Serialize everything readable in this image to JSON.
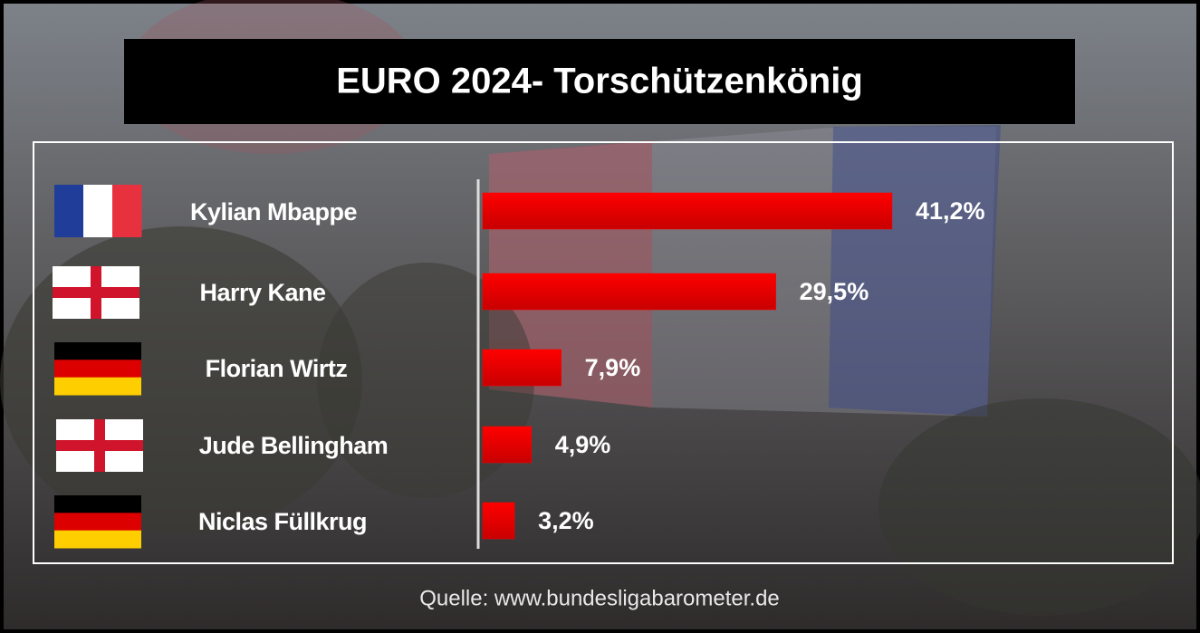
{
  "chart_data": {
    "type": "hbar",
    "title": "EURO 2024- Torschützenkönig",
    "categories": [
      "Kylian Mbappe",
      "Harry Kane",
      "Florian Wirtz",
      "Jude Bellingham",
      "Niclas Füllkrug"
    ],
    "values": [
      41.2,
      29.5,
      7.9,
      4.9,
      3.2
    ],
    "value_labels": [
      "41,2%",
      "29,5%",
      "7,9%",
      "4,9%",
      "3,2%"
    ],
    "color": "#ff0000",
    "source": "Quelle: www.bundesligabarometer.de"
  }
}
